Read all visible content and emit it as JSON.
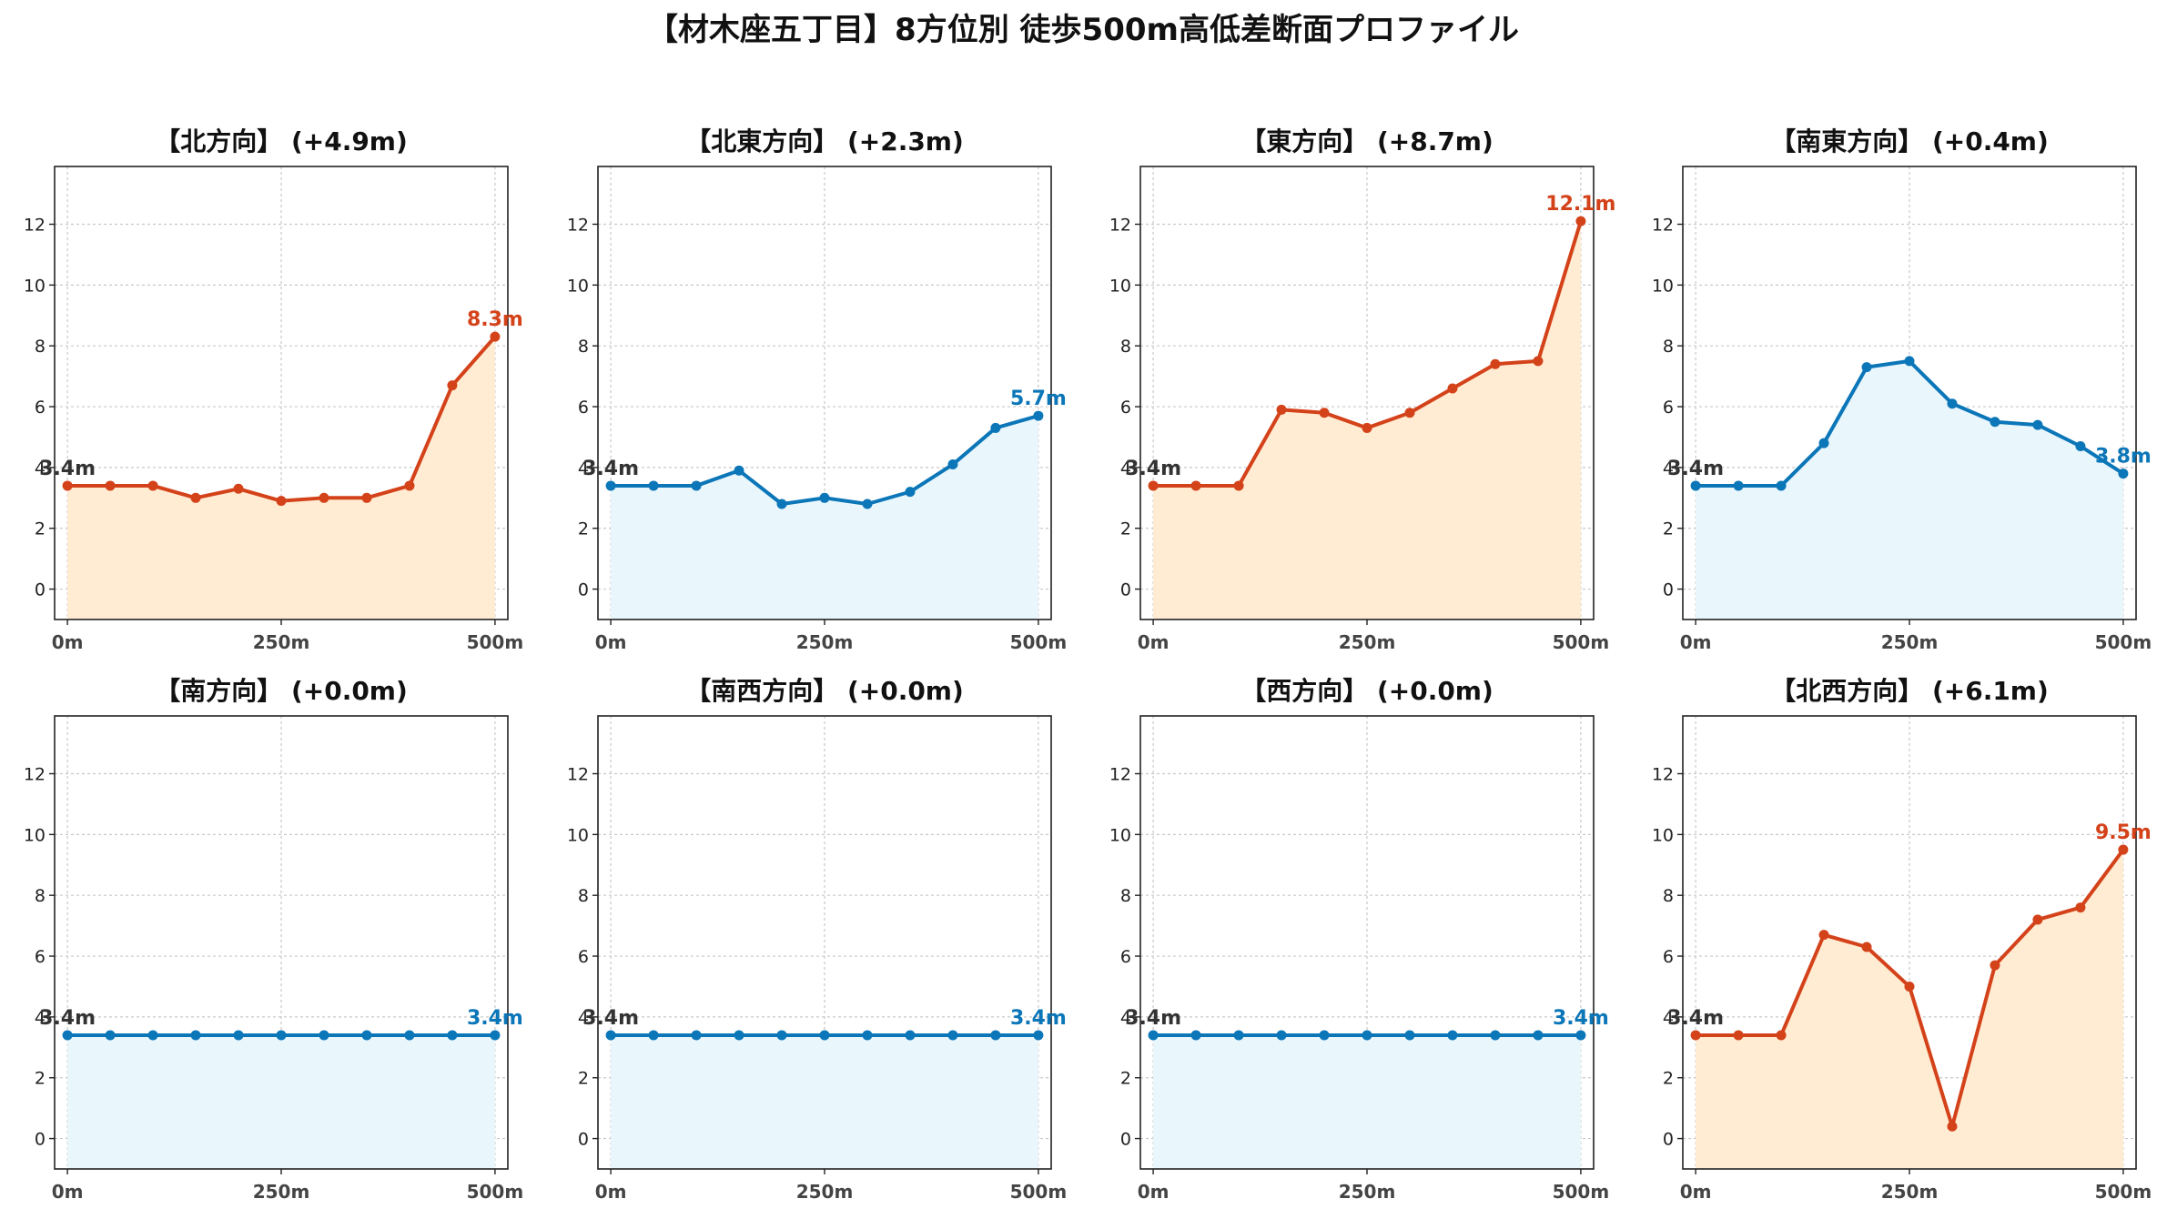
{
  "title": "【材木座五丁目】8方位別 徒歩500m高低差断面プロファイル",
  "colors": {
    "up_line": "#d4421a",
    "up_fill": "#ffecd2",
    "down_line": "#0b76b8",
    "down_fill": "#e9f6fc",
    "start_label": "#333333"
  },
  "chart_data": [
    {
      "type": "area",
      "title": "【北方向】 (+4.9m)",
      "trend": "up",
      "x": [
        0,
        50,
        100,
        150,
        200,
        250,
        300,
        350,
        400,
        450,
        500
      ],
      "y": [
        3.4,
        3.4,
        3.4,
        3.0,
        3.3,
        2.9,
        3.0,
        3.0,
        3.4,
        6.7,
        8.3
      ],
      "start_label": "3.4m",
      "end_label": "8.3m",
      "xticks": [
        0,
        250,
        500
      ],
      "xtick_labels": [
        "0m",
        "250m",
        "500m"
      ],
      "yticks": [
        0,
        2,
        4,
        6,
        8,
        10,
        12
      ],
      "ylim": [
        -1,
        13.9
      ],
      "xlim": [
        -15,
        515
      ],
      "grid": true
    },
    {
      "type": "area",
      "title": "【北東方向】 (+2.3m)",
      "trend": "down",
      "x": [
        0,
        50,
        100,
        150,
        200,
        250,
        300,
        350,
        400,
        450,
        500
      ],
      "y": [
        3.4,
        3.4,
        3.4,
        3.9,
        2.8,
        3.0,
        2.8,
        3.2,
        4.1,
        5.3,
        5.7
      ],
      "start_label": "3.4m",
      "end_label": "5.7m",
      "xticks": [
        0,
        250,
        500
      ],
      "xtick_labels": [
        "0m",
        "250m",
        "500m"
      ],
      "yticks": [
        0,
        2,
        4,
        6,
        8,
        10,
        12
      ],
      "ylim": [
        -1,
        13.9
      ],
      "xlim": [
        -15,
        515
      ],
      "grid": true
    },
    {
      "type": "area",
      "title": "【東方向】 (+8.7m)",
      "trend": "up",
      "x": [
        0,
        50,
        100,
        150,
        200,
        250,
        300,
        350,
        400,
        450,
        500
      ],
      "y": [
        3.4,
        3.4,
        3.4,
        5.9,
        5.8,
        5.3,
        5.8,
        6.6,
        7.4,
        7.5,
        12.1
      ],
      "start_label": "3.4m",
      "end_label": "12.1m",
      "xticks": [
        0,
        250,
        500
      ],
      "xtick_labels": [
        "0m",
        "250m",
        "500m"
      ],
      "yticks": [
        0,
        2,
        4,
        6,
        8,
        10,
        12
      ],
      "ylim": [
        -1,
        13.9
      ],
      "xlim": [
        -15,
        515
      ],
      "grid": true
    },
    {
      "type": "area",
      "title": "【南東方向】 (+0.4m)",
      "trend": "down",
      "x": [
        0,
        50,
        100,
        150,
        200,
        250,
        300,
        350,
        400,
        450,
        500
      ],
      "y": [
        3.4,
        3.4,
        3.4,
        4.8,
        7.3,
        7.5,
        6.1,
        5.5,
        5.4,
        4.7,
        3.8
      ],
      "start_label": "3.4m",
      "end_label": "3.8m",
      "xticks": [
        0,
        250,
        500
      ],
      "xtick_labels": [
        "0m",
        "250m",
        "500m"
      ],
      "yticks": [
        0,
        2,
        4,
        6,
        8,
        10,
        12
      ],
      "ylim": [
        -1,
        13.9
      ],
      "xlim": [
        -15,
        515
      ],
      "grid": true
    },
    {
      "type": "area",
      "title": "【南方向】 (+0.0m)",
      "trend": "down",
      "x": [
        0,
        50,
        100,
        150,
        200,
        250,
        300,
        350,
        400,
        450,
        500
      ],
      "y": [
        3.4,
        3.4,
        3.4,
        3.4,
        3.4,
        3.4,
        3.4,
        3.4,
        3.4,
        3.4,
        3.4
      ],
      "start_label": "3.4m",
      "end_label": "3.4m",
      "xticks": [
        0,
        250,
        500
      ],
      "xtick_labels": [
        "0m",
        "250m",
        "500m"
      ],
      "yticks": [
        0,
        2,
        4,
        6,
        8,
        10,
        12
      ],
      "ylim": [
        -1,
        13.9
      ],
      "xlim": [
        -15,
        515
      ],
      "grid": true
    },
    {
      "type": "area",
      "title": "【南西方向】 (+0.0m)",
      "trend": "down",
      "x": [
        0,
        50,
        100,
        150,
        200,
        250,
        300,
        350,
        400,
        450,
        500
      ],
      "y": [
        3.4,
        3.4,
        3.4,
        3.4,
        3.4,
        3.4,
        3.4,
        3.4,
        3.4,
        3.4,
        3.4
      ],
      "start_label": "3.4m",
      "end_label": "3.4m",
      "xticks": [
        0,
        250,
        500
      ],
      "xtick_labels": [
        "0m",
        "250m",
        "500m"
      ],
      "yticks": [
        0,
        2,
        4,
        6,
        8,
        10,
        12
      ],
      "ylim": [
        -1,
        13.9
      ],
      "xlim": [
        -15,
        515
      ],
      "grid": true
    },
    {
      "type": "area",
      "title": "【西方向】 (+0.0m)",
      "trend": "down",
      "x": [
        0,
        50,
        100,
        150,
        200,
        250,
        300,
        350,
        400,
        450,
        500
      ],
      "y": [
        3.4,
        3.4,
        3.4,
        3.4,
        3.4,
        3.4,
        3.4,
        3.4,
        3.4,
        3.4,
        3.4
      ],
      "start_label": "3.4m",
      "end_label": "3.4m",
      "xticks": [
        0,
        250,
        500
      ],
      "xtick_labels": [
        "0m",
        "250m",
        "500m"
      ],
      "yticks": [
        0,
        2,
        4,
        6,
        8,
        10,
        12
      ],
      "ylim": [
        -1,
        13.9
      ],
      "xlim": [
        -15,
        515
      ],
      "grid": true
    },
    {
      "type": "area",
      "title": "【北西方向】 (+6.1m)",
      "trend": "up",
      "x": [
        0,
        50,
        100,
        150,
        200,
        250,
        300,
        350,
        400,
        450,
        500
      ],
      "y": [
        3.4,
        3.4,
        3.4,
        6.7,
        6.3,
        5.0,
        0.4,
        5.7,
        7.2,
        7.6,
        9.5
      ],
      "start_label": "3.4m",
      "end_label": "9.5m",
      "xticks": [
        0,
        250,
        500
      ],
      "xtick_labels": [
        "0m",
        "250m",
        "500m"
      ],
      "yticks": [
        0,
        2,
        4,
        6,
        8,
        10,
        12
      ],
      "ylim": [
        -1,
        13.9
      ],
      "xlim": [
        -15,
        515
      ],
      "grid": true
    }
  ]
}
